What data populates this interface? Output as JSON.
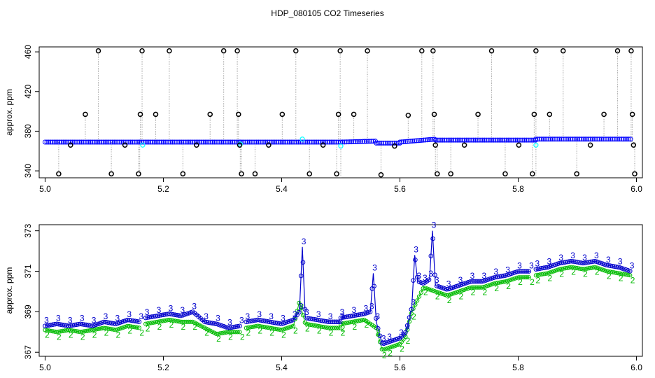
{
  "title": "HDP_080105  CO2 Timeseries",
  "chart_data": [
    {
      "type": "scatter",
      "xlabel": "",
      "ylabel": "approx. ppm",
      "xlim": [
        4.99,
        6.01
      ],
      "ylim": [
        333,
        465
      ],
      "x_ticks": [
        "5.0",
        "5.2",
        "5.4",
        "5.6",
        "5.8",
        "6.0"
      ],
      "x_tick_values": [
        5.0,
        5.2,
        5.4,
        5.6,
        5.8,
        6.0
      ],
      "y_ticks": [
        "340",
        "380",
        "420",
        "460"
      ],
      "y_tick_values": [
        340,
        380,
        420,
        460
      ],
      "colors": {
        "baseline": "#0000ff",
        "alt": "#00ffff",
        "spikes": "#000000",
        "drops": "#999999"
      },
      "segments": [
        {
          "x": [
            5.0,
            5.16
          ],
          "y": [
            369,
            369
          ]
        },
        {
          "x": [
            5.16,
            5.33
          ],
          "y": [
            369,
            369
          ]
        },
        {
          "x": [
            5.33,
            5.5
          ],
          "y": [
            369,
            369
          ]
        },
        {
          "x": [
            5.5,
            5.56
          ],
          "y": [
            369,
            370
          ]
        },
        {
          "x": [
            5.56,
            5.6
          ],
          "y": [
            368,
            368
          ]
        },
        {
          "x": [
            5.6,
            5.66
          ],
          "y": [
            369,
            372
          ]
        },
        {
          "x": [
            5.66,
            5.83
          ],
          "y": [
            371,
            371
          ]
        },
        {
          "x": [
            5.83,
            5.99
          ],
          "y": [
            372,
            372
          ]
        }
      ],
      "alt_points": [
        {
          "x": 5.165,
          "y": 366
        },
        {
          "x": 5.33,
          "y": 367
        },
        {
          "x": 5.435,
          "y": 372
        },
        {
          "x": 5.5,
          "y": 365
        },
        {
          "x": 5.83,
          "y": 366
        }
      ],
      "spikes": [
        {
          "x": 5.023,
          "y": 337
        },
        {
          "x": 5.043,
          "y": 366
        },
        {
          "x": 5.068,
          "y": 397
        },
        {
          "x": 5.09,
          "y": 461
        },
        {
          "x": 5.112,
          "y": 337
        },
        {
          "x": 5.135,
          "y": 366
        },
        {
          "x": 5.158,
          "y": 337
        },
        {
          "x": 5.161,
          "y": 397
        },
        {
          "x": 5.164,
          "y": 461
        },
        {
          "x": 5.187,
          "y": 397
        },
        {
          "x": 5.21,
          "y": 461
        },
        {
          "x": 5.233,
          "y": 337
        },
        {
          "x": 5.256,
          "y": 366
        },
        {
          "x": 5.279,
          "y": 397
        },
        {
          "x": 5.302,
          "y": 461
        },
        {
          "x": 5.325,
          "y": 461
        },
        {
          "x": 5.327,
          "y": 397
        },
        {
          "x": 5.329,
          "y": 366
        },
        {
          "x": 5.332,
          "y": 337
        },
        {
          "x": 5.355,
          "y": 337
        },
        {
          "x": 5.378,
          "y": 366
        },
        {
          "x": 5.401,
          "y": 397
        },
        {
          "x": 5.424,
          "y": 461
        },
        {
          "x": 5.447,
          "y": 337
        },
        {
          "x": 5.47,
          "y": 366
        },
        {
          "x": 5.493,
          "y": 337
        },
        {
          "x": 5.496,
          "y": 397
        },
        {
          "x": 5.499,
          "y": 461
        },
        {
          "x": 5.522,
          "y": 397
        },
        {
          "x": 5.545,
          "y": 461
        },
        {
          "x": 5.568,
          "y": 336
        },
        {
          "x": 5.591,
          "y": 365
        },
        {
          "x": 5.614,
          "y": 396
        },
        {
          "x": 5.637,
          "y": 461
        },
        {
          "x": 5.656,
          "y": 461
        },
        {
          "x": 5.658,
          "y": 397
        },
        {
          "x": 5.66,
          "y": 366
        },
        {
          "x": 5.663,
          "y": 337
        },
        {
          "x": 5.686,
          "y": 337
        },
        {
          "x": 5.709,
          "y": 366
        },
        {
          "x": 5.732,
          "y": 397
        },
        {
          "x": 5.755,
          "y": 461
        },
        {
          "x": 5.778,
          "y": 337
        },
        {
          "x": 5.801,
          "y": 366
        },
        {
          "x": 5.824,
          "y": 337
        },
        {
          "x": 5.827,
          "y": 397
        },
        {
          "x": 5.83,
          "y": 461
        },
        {
          "x": 5.853,
          "y": 397
        },
        {
          "x": 5.876,
          "y": 461
        },
        {
          "x": 5.899,
          "y": 337
        },
        {
          "x": 5.922,
          "y": 366
        },
        {
          "x": 5.945,
          "y": 397
        },
        {
          "x": 5.968,
          "y": 461
        },
        {
          "x": 5.991,
          "y": 461
        },
        {
          "x": 5.993,
          "y": 397
        },
        {
          "x": 5.995,
          "y": 366
        },
        {
          "x": 5.997,
          "y": 337
        }
      ]
    },
    {
      "type": "line",
      "xlabel": "",
      "ylabel": "approx. ppm",
      "xlim": [
        4.99,
        6.01
      ],
      "ylim": [
        366.8,
        373.3
      ],
      "x_ticks": [
        "5.0",
        "5.2",
        "5.4",
        "5.6",
        "5.8",
        "6.0"
      ],
      "x_tick_values": [
        5.0,
        5.2,
        5.4,
        5.6,
        5.8,
        6.0
      ],
      "y_ticks": [
        "367",
        "369",
        "371",
        "373"
      ],
      "y_tick_values": [
        367,
        369,
        371,
        373
      ],
      "colors": {
        "series3": "#0000cc",
        "series2": "#00bb00"
      },
      "series": [
        {
          "label": "3",
          "segments": [
            {
              "x": [
                5.0,
                5.02,
                5.04,
                5.06,
                5.08,
                5.1,
                5.12,
                5.14,
                5.16
              ],
              "y": [
                368.3,
                368.4,
                368.3,
                368.4,
                368.3,
                368.5,
                368.4,
                368.6,
                368.5
              ]
            },
            {
              "x": [
                5.17,
                5.19,
                5.21,
                5.23,
                5.25,
                5.27,
                5.29,
                5.31,
                5.33
              ],
              "y": [
                368.7,
                368.8,
                368.9,
                368.8,
                369.0,
                368.5,
                368.4,
                368.2,
                368.3
              ]
            },
            {
              "x": [
                5.34,
                5.36,
                5.38,
                5.4,
                5.42,
                5.43,
                5.435,
                5.44,
                5.46,
                5.48,
                5.5
              ],
              "y": [
                368.5,
                368.6,
                368.5,
                368.4,
                368.6,
                369.0,
                372.2,
                368.7,
                368.6,
                368.5,
                368.5
              ]
            },
            {
              "x": [
                5.5,
                5.52,
                5.54,
                5.55,
                5.555,
                5.56,
                5.57,
                5.58,
                5.6,
                5.61,
                5.62,
                5.625,
                5.63,
                5.64,
                5.65,
                5.655,
                5.66,
                5.68,
                5.7,
                5.72,
                5.74,
                5.76,
                5.78,
                5.8,
                5.82
              ],
              "y": [
                368.7,
                368.8,
                368.9,
                369.0,
                370.9,
                368.5,
                367.4,
                367.5,
                367.7,
                368.0,
                369.2,
                371.8,
                370.5,
                370.4,
                370.6,
                373.0,
                370.3,
                370.1,
                370.3,
                370.5,
                370.5,
                370.7,
                370.8,
                371.0,
                371.0
              ]
            },
            {
              "x": [
                5.83,
                5.85,
                5.87,
                5.89,
                5.91,
                5.93,
                5.95,
                5.97,
                5.99
              ],
              "y": [
                371.1,
                371.2,
                371.4,
                371.5,
                371.4,
                371.5,
                371.3,
                371.2,
                371.0
              ]
            }
          ]
        },
        {
          "label": "2",
          "segments": [
            {
              "x": [
                5.0,
                5.02,
                5.04,
                5.06,
                5.08,
                5.1,
                5.12,
                5.14,
                5.16
              ],
              "y": [
                368.1,
                368.0,
                368.1,
                368.0,
                368.1,
                368.2,
                368.1,
                368.3,
                368.2
              ]
            },
            {
              "x": [
                5.17,
                5.19,
                5.21,
                5.23,
                5.25,
                5.27,
                5.29,
                5.31,
                5.33
              ],
              "y": [
                368.4,
                368.5,
                368.6,
                368.5,
                368.5,
                368.2,
                367.9,
                368.0,
                368.0
              ]
            },
            {
              "x": [
                5.34,
                5.36,
                5.38,
                5.4,
                5.42,
                5.43,
                5.44,
                5.46,
                5.48,
                5.5
              ],
              "y": [
                368.2,
                368.3,
                368.2,
                368.1,
                368.3,
                369.5,
                368.4,
                368.3,
                368.2,
                368.2
              ]
            },
            {
              "x": [
                5.5,
                5.52,
                5.54,
                5.56,
                5.57,
                5.58,
                5.6,
                5.61,
                5.62,
                5.64,
                5.66,
                5.68,
                5.7,
                5.72,
                5.74,
                5.76,
                5.78,
                5.8,
                5.82
              ],
              "y": [
                368.4,
                368.5,
                368.6,
                368.2,
                367.1,
                367.2,
                367.4,
                367.8,
                369.0,
                370.2,
                370.0,
                369.8,
                370.0,
                370.2,
                370.2,
                370.4,
                370.5,
                370.7,
                370.7
              ]
            },
            {
              "x": [
                5.83,
                5.85,
                5.87,
                5.89,
                5.91,
                5.93,
                5.95,
                5.97,
                5.99
              ],
              "y": [
                370.8,
                370.9,
                371.1,
                371.2,
                371.1,
                371.2,
                371.0,
                370.9,
                370.8
              ]
            }
          ]
        }
      ]
    }
  ]
}
